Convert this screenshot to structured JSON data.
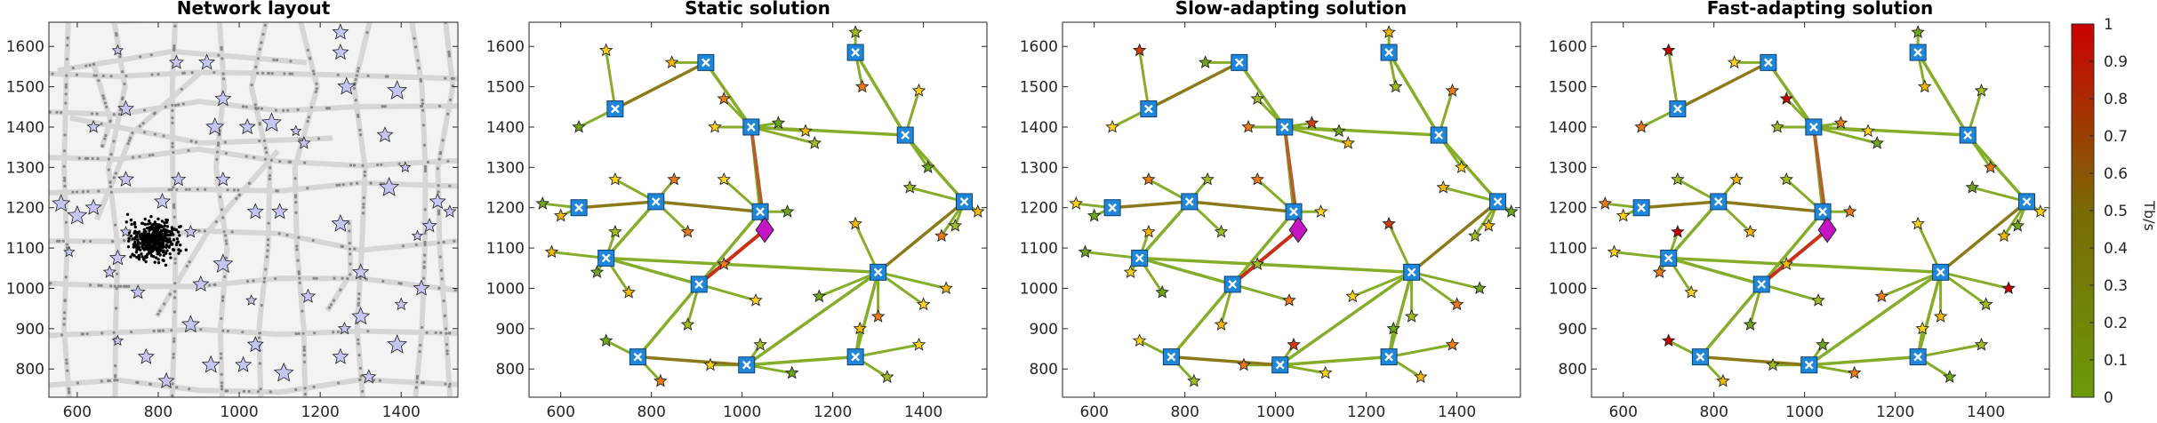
{
  "figure": {
    "colorbar": {
      "label": "Tb/s",
      "ticks": [
        "0",
        "0.1",
        "0.2",
        "0.3",
        "0.4",
        "0.5",
        "0.6",
        "0.7",
        "0.8",
        "0.9",
        "1"
      ],
      "range": [
        0,
        1
      ],
      "low_color": "#6b9a0a",
      "mid_color": "#7a6a05",
      "high_color": "#cc0000"
    }
  },
  "chart_data": [
    {
      "type": "scatter",
      "title": "Network layout",
      "xlim": [
        530,
        1540
      ],
      "ylim": [
        730,
        1660
      ],
      "xticks": [
        "600",
        "800",
        "1000",
        "1200",
        "1400"
      ],
      "yticks": [
        "800",
        "900",
        "1000",
        "1100",
        "1200",
        "1300",
        "1400",
        "1500",
        "1600"
      ],
      "background": "road grid (light gray)",
      "user_cluster_center": [
        790,
        1120
      ],
      "markers": "lavender stars = sites, black dots = users, gray dots = road traffic"
    },
    {
      "type": "scatter",
      "title": "Static solution",
      "xlim": [
        530,
        1540
      ],
      "ylim": [
        730,
        1660
      ],
      "xticks": [
        "600",
        "800",
        "1000",
        "1200",
        "1400"
      ],
      "yticks": [
        "800",
        "900",
        "1000",
        "1100",
        "1200",
        "1300",
        "1400",
        "1500",
        "1600"
      ]
    },
    {
      "type": "scatter",
      "title": "Slow-adapting solution",
      "xlim": [
        530,
        1540
      ],
      "ylim": [
        730,
        1660
      ],
      "xticks": [
        "600",
        "800",
        "1000",
        "1200",
        "1400"
      ],
      "yticks": [
        "800",
        "900",
        "1000",
        "1100",
        "1200",
        "1300",
        "1400",
        "1500",
        "1600"
      ]
    },
    {
      "type": "scatter",
      "title": "Fast-adapting solution",
      "xlim": [
        530,
        1540
      ],
      "ylim": [
        730,
        1660
      ],
      "xticks": [
        "600",
        "800",
        "1000",
        "1200",
        "1400"
      ],
      "yticks": [
        "800",
        "900",
        "1000",
        "1100",
        "1200",
        "1300",
        "1400",
        "1500",
        "1600"
      ]
    }
  ],
  "network": {
    "core": [
      1050,
      1145
    ],
    "hubs": [
      [
        920,
        1560
      ],
      [
        1250,
        1585
      ],
      [
        1020,
        1400
      ],
      [
        720,
        1445
      ],
      [
        1360,
        1380
      ],
      [
        640,
        1200
      ],
      [
        810,
        1215
      ],
      [
        1040,
        1190
      ],
      [
        1490,
        1215
      ],
      [
        700,
        1075
      ],
      [
        905,
        1010
      ],
      [
        1300,
        1040
      ],
      [
        770,
        830
      ],
      [
        1010,
        810
      ],
      [
        1250,
        830
      ]
    ],
    "hub_links": [
      [
        0,
        3
      ],
      [
        0,
        2
      ],
      [
        1,
        4
      ],
      [
        4,
        8
      ],
      [
        8,
        11
      ],
      [
        11,
        9
      ],
      [
        11,
        13
      ],
      [
        13,
        14
      ],
      [
        12,
        13
      ],
      [
        12,
        10
      ],
      [
        10,
        7
      ],
      [
        7,
        2
      ],
      [
        5,
        6
      ],
      [
        6,
        9
      ],
      [
        10,
        9
      ],
      [
        14,
        11
      ],
      [
        7,
        6
      ],
      [
        2,
        4
      ]
    ],
    "sites": [
      [
        700,
        1590
      ],
      [
        640,
        1400
      ],
      [
        845,
        1560
      ],
      [
        1250,
        1635
      ],
      [
        1265,
        1500
      ],
      [
        1390,
        1490
      ],
      [
        1410,
        1300
      ],
      [
        1520,
        1190
      ],
      [
        1470,
        1155
      ],
      [
        960,
        1470
      ],
      [
        940,
        1400
      ],
      [
        1080,
        1410
      ],
      [
        1140,
        1390
      ],
      [
        1160,
        1360
      ],
      [
        850,
        1270
      ],
      [
        720,
        1270
      ],
      [
        560,
        1210
      ],
      [
        600,
        1180
      ],
      [
        720,
        1140
      ],
      [
        880,
        1140
      ],
      [
        960,
        1270
      ],
      [
        1100,
        1190
      ],
      [
        1250,
        1160
      ],
      [
        1370,
        1250
      ],
      [
        1440,
        1130
      ],
      [
        1400,
        960
      ],
      [
        1170,
        980
      ],
      [
        1450,
        1000
      ],
      [
        880,
        910
      ],
      [
        960,
        1060
      ],
      [
        1030,
        970
      ],
      [
        680,
        1040
      ],
      [
        750,
        990
      ],
      [
        1040,
        860
      ],
      [
        1300,
        930
      ],
      [
        1390,
        860
      ],
      [
        700,
        870
      ],
      [
        1260,
        900
      ],
      [
        1320,
        780
      ],
      [
        820,
        770
      ],
      [
        930,
        810
      ],
      [
        1110,
        790
      ],
      [
        580,
        1090
      ]
    ]
  }
}
